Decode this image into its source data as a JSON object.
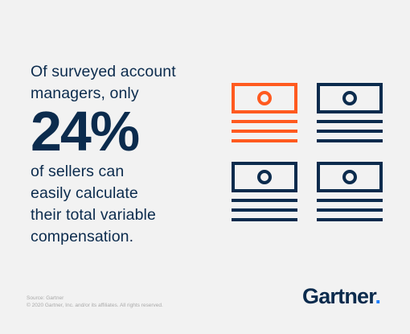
{
  "headline": {
    "lines_before": [
      "Of surveyed account",
      "managers, only"
    ],
    "stat": "24%",
    "lines_after": [
      "of sellers can",
      "easily calculate",
      "their total variable",
      "compensation."
    ]
  },
  "footer": {
    "source": "Source: Gartner",
    "copyright": "© 2020 Gartner, Inc. and/or its affiliates. All rights reserved."
  },
  "logo": {
    "text": "Gartner",
    "dot": "."
  },
  "icons": [
    {
      "name": "cash-icon",
      "color": "#ff5a1f"
    },
    {
      "name": "cash-icon",
      "color": "#0b2b4d"
    },
    {
      "name": "cash-icon",
      "color": "#0b2b4d"
    },
    {
      "name": "cash-icon",
      "color": "#0b2b4d"
    }
  ],
  "colors": {
    "navy": "#0b2b4d",
    "orange": "#ff5a1f",
    "background": "#f2f2f2",
    "logo_dot": "#1f80ff"
  }
}
